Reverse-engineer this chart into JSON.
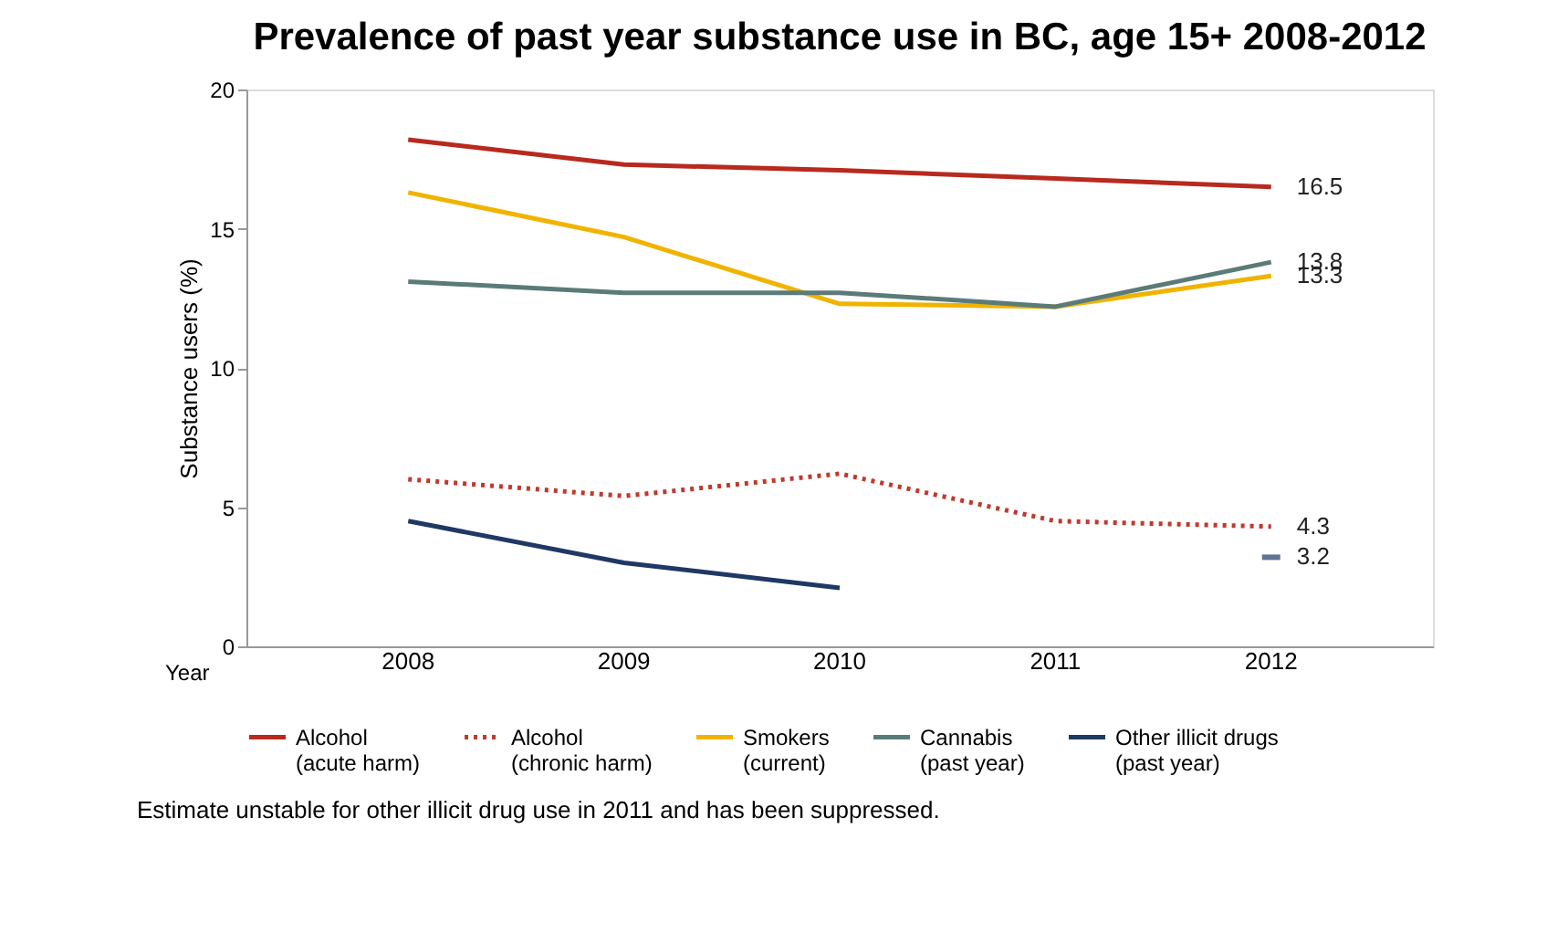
{
  "chart_data": {
    "type": "line",
    "title": "Prevalence of past year substance use in BC, age 15+ 2008-2012",
    "xlabel": "Year",
    "ylabel": "Substance users (%)",
    "categories": [
      "2008",
      "2009",
      "2010",
      "2011",
      "2012"
    ],
    "ylim": [
      0,
      20
    ],
    "yticks": [
      0,
      5,
      10,
      15,
      20
    ],
    "grid": false,
    "legend": "bottom",
    "marker": "none",
    "series": [
      {
        "name": "Alcohol\n(acute harm)",
        "color": "#b8291e",
        "line_style": "solid",
        "values": [
          18.2,
          17.3,
          17.1,
          16.8,
          16.5
        ],
        "value_labels": [
          null,
          null,
          null,
          null,
          "16.5"
        ]
      },
      {
        "name": "Alcohol\n(chronic harm)",
        "color": "#c0392b",
        "line_style": "dotted",
        "values": [
          6.0,
          5.4,
          6.2,
          4.5,
          4.3
        ],
        "value_labels": [
          null,
          null,
          null,
          null,
          "4.3"
        ]
      },
      {
        "name": "Smokers\n(current)",
        "color": "#f0b400",
        "line_style": "solid",
        "values": [
          16.3,
          14.7,
          12.3,
          12.2,
          13.3
        ],
        "value_labels": [
          null,
          null,
          null,
          null,
          "13.3"
        ]
      },
      {
        "name": "Cannabis\n(past year)",
        "color": "#5b7b78",
        "line_style": "solid",
        "values": [
          13.1,
          12.7,
          12.7,
          12.2,
          13.8
        ],
        "value_labels": [
          null,
          null,
          null,
          null,
          "13.8"
        ]
      },
      {
        "name": "Other illicit drugs\n(past year)",
        "color": "#1f3864",
        "line_style": "solid",
        "values": [
          4.5,
          3.0,
          2.1,
          null,
          3.2
        ],
        "value_labels": [
          null,
          null,
          null,
          null,
          "3.2"
        ]
      }
    ],
    "annotations": [
      "Estimate unstable for other illicit drug use in 2011 and has been suppressed."
    ]
  }
}
